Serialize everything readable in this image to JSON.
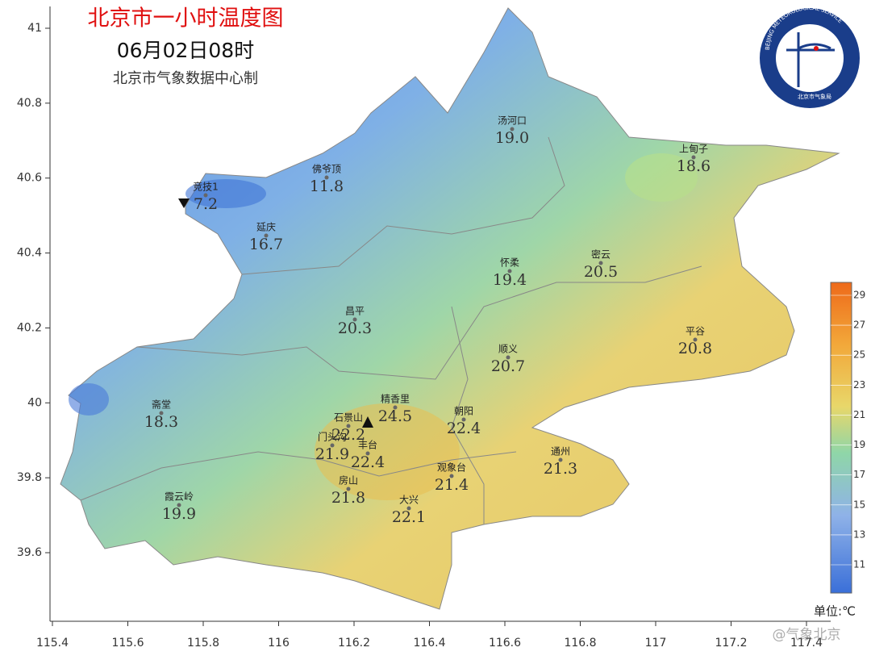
{
  "header": {
    "title": "北京市一小时温度图",
    "time": "06月02日08时",
    "source": "北京市气象数据中心制"
  },
  "logo": {
    "text_en": "BEIJING METEOROLOGICAL SERVICE",
    "text_cn": "北京市气象局"
  },
  "axes": {
    "xticks": [
      115.4,
      115.6,
      115.8,
      116,
      116.2,
      116.4,
      116.6,
      116.8,
      117,
      117.2,
      117.4
    ],
    "yticks": [
      41,
      40.8,
      40.6,
      40.4,
      40.2,
      40,
      39.8,
      39.6
    ]
  },
  "stations": [
    {
      "name": "汤河口",
      "temp": {
        "value": 19,
        "label": "19.0"
      }
    },
    {
      "name": "上甸子",
      "temp": 18.6
    },
    {
      "name": "佛爷顶",
      "temp": 11.8
    },
    {
      "name": "竞技1",
      "temp": 7.2
    },
    {
      "name": "延庆",
      "temp": 16.7
    },
    {
      "name": "怀柔",
      "temp": 19.4
    },
    {
      "name": "密云",
      "temp": 20.5
    },
    {
      "name": "昌平",
      "temp": 20.3
    },
    {
      "name": "平谷",
      "temp": 20.8
    },
    {
      "name": "顺义",
      "temp": 20.7
    },
    {
      "name": "精香里",
      "temp": 24.5
    },
    {
      "name": "石景山",
      "temp": 22.2
    },
    {
      "name": "朝阳",
      "temp": 22.4
    },
    {
      "name": "门头沟",
      "temp": 21.9
    },
    {
      "name": "丰台",
      "temp": 22.4
    },
    {
      "name": "通州",
      "temp": 21.3
    },
    {
      "name": "观象台",
      "temp": 21.4
    },
    {
      "name": "房山",
      "temp": 21.8
    },
    {
      "name": "大兴",
      "temp": 22.1
    },
    {
      "name": "霞云岭",
      "temp": 19.9
    },
    {
      "name": "斋堂",
      "temp": 18.3
    }
  ],
  "colorbar": {
    "ticks": [
      11,
      13,
      15,
      17,
      19,
      21,
      23,
      25,
      27,
      29
    ],
    "unit": "单位:℃"
  },
  "watermark": "@气象北京"
}
